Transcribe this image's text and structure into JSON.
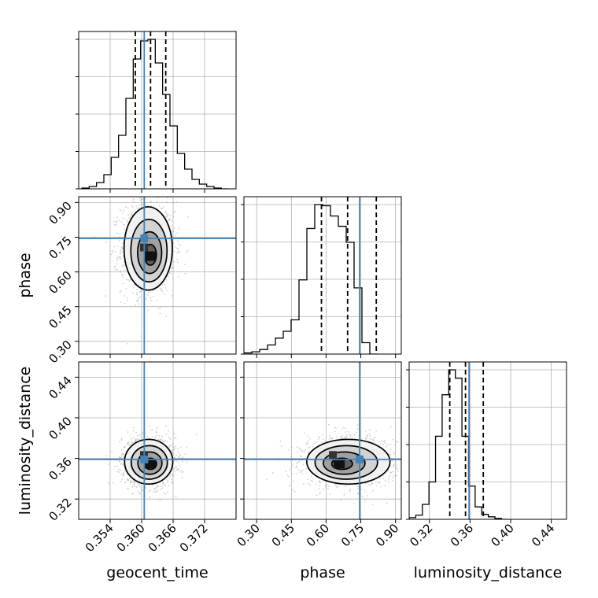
{
  "chart_data": {
    "type": "corner",
    "parameters": [
      {
        "key": "geocent_time",
        "label": "geocent_time",
        "range": [
          0.348,
          0.378
        ],
        "ticks": [
          "0.354",
          "0.360",
          "0.366",
          "0.372"
        ],
        "tick_values": [
          0.354,
          0.36,
          0.366,
          0.372
        ],
        "truth": 0.3605
      },
      {
        "key": "phase",
        "label": "phase",
        "range": [
          0.245,
          0.925
        ],
        "ticks": [
          "0.30",
          "0.45",
          "0.60",
          "0.75",
          "0.90"
        ],
        "tick_values": [
          0.3,
          0.45,
          0.6,
          0.75,
          0.9
        ],
        "truth": 0.745
      },
      {
        "key": "luminosity_distance",
        "label": "luminosity_distance",
        "range": [
          0.3,
          0.455
        ],
        "ticks": [
          "0.32",
          "0.36",
          "0.40",
          "0.44"
        ],
        "tick_values": [
          0.32,
          0.36,
          0.4,
          0.44
        ],
        "truth": 0.359
      }
    ],
    "histograms": [
      {
        "param": "geocent_time",
        "bin_start": 0.3486,
        "bin_width": 0.0014,
        "counts": [
          1,
          3,
          8,
          18,
          40,
          68,
          115,
          165,
          188,
          190,
          160,
          120,
          80,
          45,
          25,
          12,
          6,
          3,
          1,
          0
        ],
        "quantiles": [
          0.3588,
          0.3617,
          0.3646
        ]
      },
      {
        "param": "phase",
        "bin_start": 0.245,
        "bin_width": 0.034,
        "counts": [
          1,
          2,
          4,
          8,
          14,
          20,
          30,
          65,
          110,
          131,
          130,
          121,
          112,
          98,
          58,
          10,
          0
        ],
        "quantiles": [
          0.58,
          0.693,
          0.817
        ]
      },
      {
        "param": "luminosity_distance",
        "bin_start": 0.3,
        "bin_width": 0.0065,
        "counts": [
          2,
          5,
          18,
          45,
          100,
          150,
          180,
          170,
          100,
          40,
          15,
          6,
          3,
          1,
          0
        ],
        "quantiles": [
          0.34,
          0.3555,
          0.373
        ]
      }
    ],
    "contours": [
      {
        "x": "geocent_time",
        "y": "phase",
        "peak": [
          0.3618,
          0.665
        ],
        "center": [
          0.3612,
          0.705
        ],
        "sigma": [
          0.0023,
          0.09
        ],
        "levels_sigma": [
          0.5,
          1.0,
          1.5,
          2.0
        ]
      },
      {
        "x": "geocent_time",
        "y": "luminosity_distance",
        "peak": [
          0.3618,
          0.354
        ],
        "center": [
          0.3613,
          0.357
        ],
        "sigma": [
          0.0023,
          0.011
        ],
        "levels_sigma": [
          0.5,
          1.0,
          1.5,
          2.0
        ]
      },
      {
        "x": "phase",
        "y": "luminosity_distance",
        "peak": [
          0.66,
          0.354
        ],
        "center": [
          0.7,
          0.357
        ],
        "sigma": [
          0.09,
          0.011
        ],
        "levels_sigma": [
          0.5,
          1.0,
          1.5,
          2.0
        ]
      }
    ],
    "truth_color": "#4682b4",
    "line_color": "#000000",
    "grid": true
  }
}
